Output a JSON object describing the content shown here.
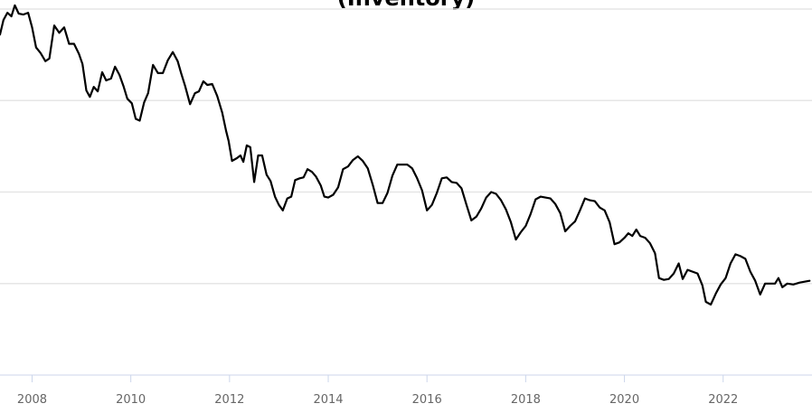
{
  "chart_data": {
    "type": "line",
    "title": "(Inventory)",
    "xlabel": "",
    "ylabel": "",
    "x_ticks": [
      "2008",
      "2010",
      "2012",
      "2014",
      "2016",
      "2018",
      "2020",
      "2022"
    ],
    "xlim": [
      2007.35,
      2023.8
    ],
    "ylim": [
      0,
      4
    ],
    "grid": "horizontal",
    "line_color": "#000000",
    "series": [
      {
        "values": [
          [
            2007.35,
            3.72
          ],
          [
            2007.42,
            3.88
          ],
          [
            2007.5,
            3.96
          ],
          [
            2007.58,
            3.92
          ],
          [
            2007.65,
            4.04
          ],
          [
            2007.73,
            3.95
          ],
          [
            2007.82,
            3.94
          ],
          [
            2007.92,
            3.96
          ],
          [
            2008.0,
            3.8
          ],
          [
            2008.08,
            3.58
          ],
          [
            2008.17,
            3.52
          ],
          [
            2008.27,
            3.43
          ],
          [
            2008.35,
            3.46
          ],
          [
            2008.45,
            3.82
          ],
          [
            2008.55,
            3.74
          ],
          [
            2008.65,
            3.8
          ],
          [
            2008.75,
            3.62
          ],
          [
            2008.85,
            3.62
          ],
          [
            2008.95,
            3.51
          ],
          [
            2009.02,
            3.4
          ],
          [
            2009.1,
            3.11
          ],
          [
            2009.17,
            3.04
          ],
          [
            2009.25,
            3.15
          ],
          [
            2009.33,
            3.1
          ],
          [
            2009.42,
            3.31
          ],
          [
            2009.5,
            3.22
          ],
          [
            2009.6,
            3.24
          ],
          [
            2009.68,
            3.37
          ],
          [
            2009.77,
            3.28
          ],
          [
            2009.85,
            3.16
          ],
          [
            2009.93,
            3.02
          ],
          [
            2010.02,
            2.97
          ],
          [
            2010.1,
            2.8
          ],
          [
            2010.18,
            2.78
          ],
          [
            2010.27,
            2.98
          ],
          [
            2010.35,
            3.08
          ],
          [
            2010.45,
            3.39
          ],
          [
            2010.55,
            3.3
          ],
          [
            2010.65,
            3.3
          ],
          [
            2010.75,
            3.44
          ],
          [
            2010.85,
            3.53
          ],
          [
            2010.95,
            3.43
          ],
          [
            2011.02,
            3.3
          ],
          [
            2011.1,
            3.16
          ],
          [
            2011.2,
            2.96
          ],
          [
            2011.3,
            3.08
          ],
          [
            2011.38,
            3.1
          ],
          [
            2011.47,
            3.21
          ],
          [
            2011.55,
            3.17
          ],
          [
            2011.65,
            3.18
          ],
          [
            2011.75,
            3.05
          ],
          [
            2011.85,
            2.87
          ],
          [
            2011.93,
            2.67
          ],
          [
            2011.98,
            2.56
          ],
          [
            2012.05,
            2.34
          ],
          [
            2012.15,
            2.37
          ],
          [
            2012.22,
            2.4
          ],
          [
            2012.28,
            2.33
          ],
          [
            2012.35,
            2.51
          ],
          [
            2012.42,
            2.49
          ],
          [
            2012.5,
            2.11
          ],
          [
            2012.58,
            2.4
          ],
          [
            2012.66,
            2.4
          ],
          [
            2012.75,
            2.19
          ],
          [
            2012.83,
            2.12
          ],
          [
            2012.92,
            1.95
          ],
          [
            2013.0,
            1.86
          ],
          [
            2013.08,
            1.8
          ],
          [
            2013.17,
            1.93
          ],
          [
            2013.25,
            1.95
          ],
          [
            2013.33,
            2.13
          ],
          [
            2013.42,
            2.15
          ],
          [
            2013.5,
            2.16
          ],
          [
            2013.58,
            2.25
          ],
          [
            2013.67,
            2.22
          ],
          [
            2013.75,
            2.17
          ],
          [
            2013.85,
            2.07
          ],
          [
            2013.92,
            1.95
          ],
          [
            2014.0,
            1.94
          ],
          [
            2014.1,
            1.97
          ],
          [
            2014.2,
            2.05
          ],
          [
            2014.3,
            2.25
          ],
          [
            2014.4,
            2.28
          ],
          [
            2014.5,
            2.35
          ],
          [
            2014.6,
            2.39
          ],
          [
            2014.7,
            2.34
          ],
          [
            2014.8,
            2.26
          ],
          [
            2014.9,
            2.08
          ],
          [
            2015.0,
            1.88
          ],
          [
            2015.1,
            1.88
          ],
          [
            2015.2,
            1.99
          ],
          [
            2015.3,
            2.18
          ],
          [
            2015.4,
            2.3
          ],
          [
            2015.5,
            2.3
          ],
          [
            2015.6,
            2.3
          ],
          [
            2015.7,
            2.26
          ],
          [
            2015.8,
            2.15
          ],
          [
            2015.9,
            2.02
          ],
          [
            2016.0,
            1.8
          ],
          [
            2016.1,
            1.86
          ],
          [
            2016.2,
            1.99
          ],
          [
            2016.3,
            2.15
          ],
          [
            2016.4,
            2.16
          ],
          [
            2016.5,
            2.11
          ],
          [
            2016.6,
            2.1
          ],
          [
            2016.7,
            2.04
          ],
          [
            2016.8,
            1.86
          ],
          [
            2016.9,
            1.69
          ],
          [
            2017.0,
            1.73
          ],
          [
            2017.1,
            1.82
          ],
          [
            2017.2,
            1.94
          ],
          [
            2017.3,
            2.0
          ],
          [
            2017.4,
            1.98
          ],
          [
            2017.5,
            1.91
          ],
          [
            2017.6,
            1.81
          ],
          [
            2017.7,
            1.67
          ],
          [
            2017.8,
            1.48
          ],
          [
            2017.9,
            1.56
          ],
          [
            2018.0,
            1.63
          ],
          [
            2018.1,
            1.76
          ],
          [
            2018.2,
            1.92
          ],
          [
            2018.3,
            1.95
          ],
          [
            2018.4,
            1.94
          ],
          [
            2018.5,
            1.93
          ],
          [
            2018.6,
            1.87
          ],
          [
            2018.7,
            1.77
          ],
          [
            2018.8,
            1.57
          ],
          [
            2018.9,
            1.63
          ],
          [
            2019.0,
            1.68
          ],
          [
            2019.1,
            1.8
          ],
          [
            2019.2,
            1.93
          ],
          [
            2019.3,
            1.91
          ],
          [
            2019.4,
            1.9
          ],
          [
            2019.5,
            1.83
          ],
          [
            2019.6,
            1.8
          ],
          [
            2019.7,
            1.67
          ],
          [
            2019.8,
            1.43
          ],
          [
            2019.9,
            1.45
          ],
          [
            2020.0,
            1.5
          ],
          [
            2020.08,
            1.55
          ],
          [
            2020.16,
            1.52
          ],
          [
            2020.24,
            1.59
          ],
          [
            2020.32,
            1.52
          ],
          [
            2020.42,
            1.5
          ],
          [
            2020.52,
            1.44
          ],
          [
            2020.62,
            1.33
          ],
          [
            2020.7,
            1.06
          ],
          [
            2020.8,
            1.04
          ],
          [
            2020.9,
            1.05
          ],
          [
            2021.0,
            1.11
          ],
          [
            2021.1,
            1.22
          ],
          [
            2021.18,
            1.05
          ],
          [
            2021.28,
            1.15
          ],
          [
            2021.38,
            1.13
          ],
          [
            2021.48,
            1.11
          ],
          [
            2021.58,
            0.98
          ],
          [
            2021.65,
            0.8
          ],
          [
            2021.75,
            0.77
          ],
          [
            2021.85,
            0.89
          ],
          [
            2021.95,
            0.99
          ],
          [
            2022.05,
            1.06
          ],
          [
            2022.15,
            1.22
          ],
          [
            2022.25,
            1.32
          ],
          [
            2022.35,
            1.3
          ],
          [
            2022.45,
            1.27
          ],
          [
            2022.55,
            1.13
          ],
          [
            2022.65,
            1.03
          ],
          [
            2022.75,
            0.88
          ],
          [
            2022.85,
            1.0
          ],
          [
            2022.95,
            1.0
          ],
          [
            2023.05,
            1.0
          ],
          [
            2023.12,
            1.06
          ],
          [
            2023.2,
            0.96
          ],
          [
            2023.3,
            1.0
          ],
          [
            2023.42,
            0.99
          ],
          [
            2023.55,
            1.01
          ],
          [
            2023.65,
            1.02
          ],
          [
            2023.75,
            1.03
          ]
        ]
      }
    ]
  }
}
